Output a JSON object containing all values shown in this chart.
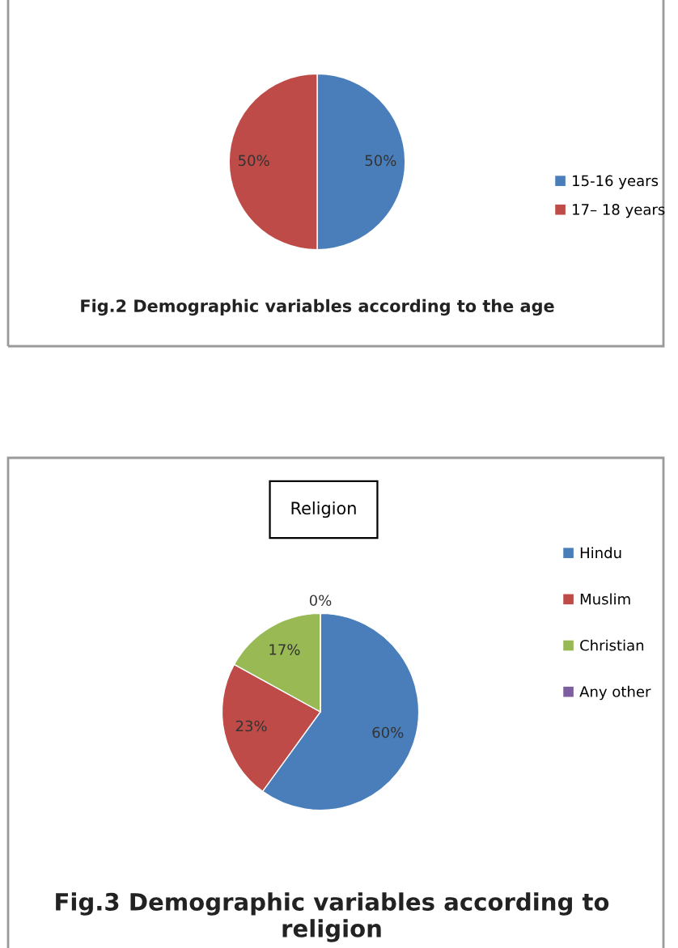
{
  "chart_data": [
    {
      "type": "pie",
      "categories": [
        "15-16 years",
        "17– 18 years"
      ],
      "values": [
        50,
        50
      ],
      "colors": [
        "#4a7ebb",
        "#be4b48"
      ],
      "value_labels": [
        "50%",
        "50%"
      ],
      "legend": "right",
      "annotations": [
        "Fig.2 Demographic variables according to the age"
      ]
    },
    {
      "type": "pie",
      "title": "Religion",
      "categories": [
        "Hindu",
        "Muslim",
        "Christian",
        "Any other"
      ],
      "values": [
        60,
        23,
        17,
        0
      ],
      "colors": [
        "#4a7ebb",
        "#be4b48",
        "#98b954",
        "#7d5fa0"
      ],
      "value_labels": [
        "60%",
        "23%",
        "17%",
        "0%"
      ],
      "legend": "right",
      "annotations": [
        "Fig.3 Demographic variables according to religion"
      ]
    }
  ]
}
